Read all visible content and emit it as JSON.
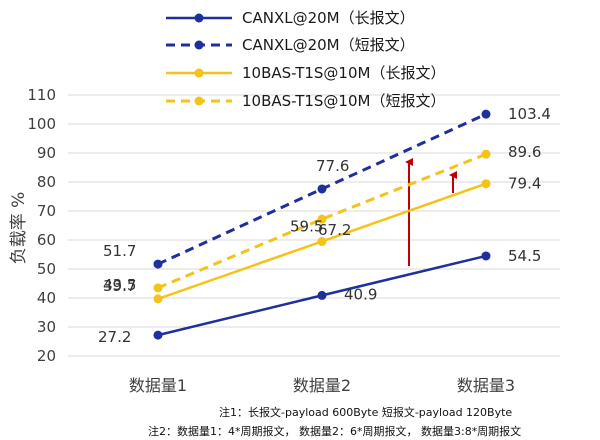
{
  "chart_data": {
    "type": "line",
    "title": "",
    "xlabel": "",
    "ylabel": "负载率 %",
    "ylim": [
      20,
      110
    ],
    "y_ticks": [
      20,
      30,
      40,
      50,
      60,
      70,
      80,
      90,
      100,
      110
    ],
    "categories": [
      "数据量1",
      "数据量2",
      "数据量3"
    ],
    "grid": "horizontal",
    "legend_position": "top",
    "series": [
      {
        "name": "CANXL@20M（长报文）",
        "values": [
          27.2,
          40.9,
          54.5
        ],
        "color": "#1f2f9c",
        "dashed": false,
        "labels": [
          "27.2",
          "40.9",
          "54.5"
        ]
      },
      {
        "name": "CANXL@20M（短报文）",
        "values": [
          51.7,
          77.6,
          103.4
        ],
        "color": "#1f2f9c",
        "dashed": true,
        "labels": [
          "51.7",
          "77.6",
          "103.4"
        ]
      },
      {
        "name": "10BAS-T1S@10M（长报文）",
        "values": [
          39.7,
          59.5,
          79.4
        ],
        "color": "#f5c218",
        "dashed": false,
        "labels": [
          "39.7",
          "59.5",
          "79.4"
        ]
      },
      {
        "name": "10BAS-T1S@10M（短报文）",
        "values": [
          43.5,
          67.2,
          89.6
        ],
        "color": "#f5c218",
        "dashed": true,
        "labels": [
          "43.5",
          "67.2",
          "89.6"
        ]
      }
    ],
    "arrows_color": "#c00000"
  },
  "notes": {
    "note1": "注1：长报文-payload 600Byte     短报文-payload 120Byte",
    "note2": "注2：数据量1：4*周期报文，   数据量2：6*周期报文，   数据量3:8*周期报文"
  }
}
